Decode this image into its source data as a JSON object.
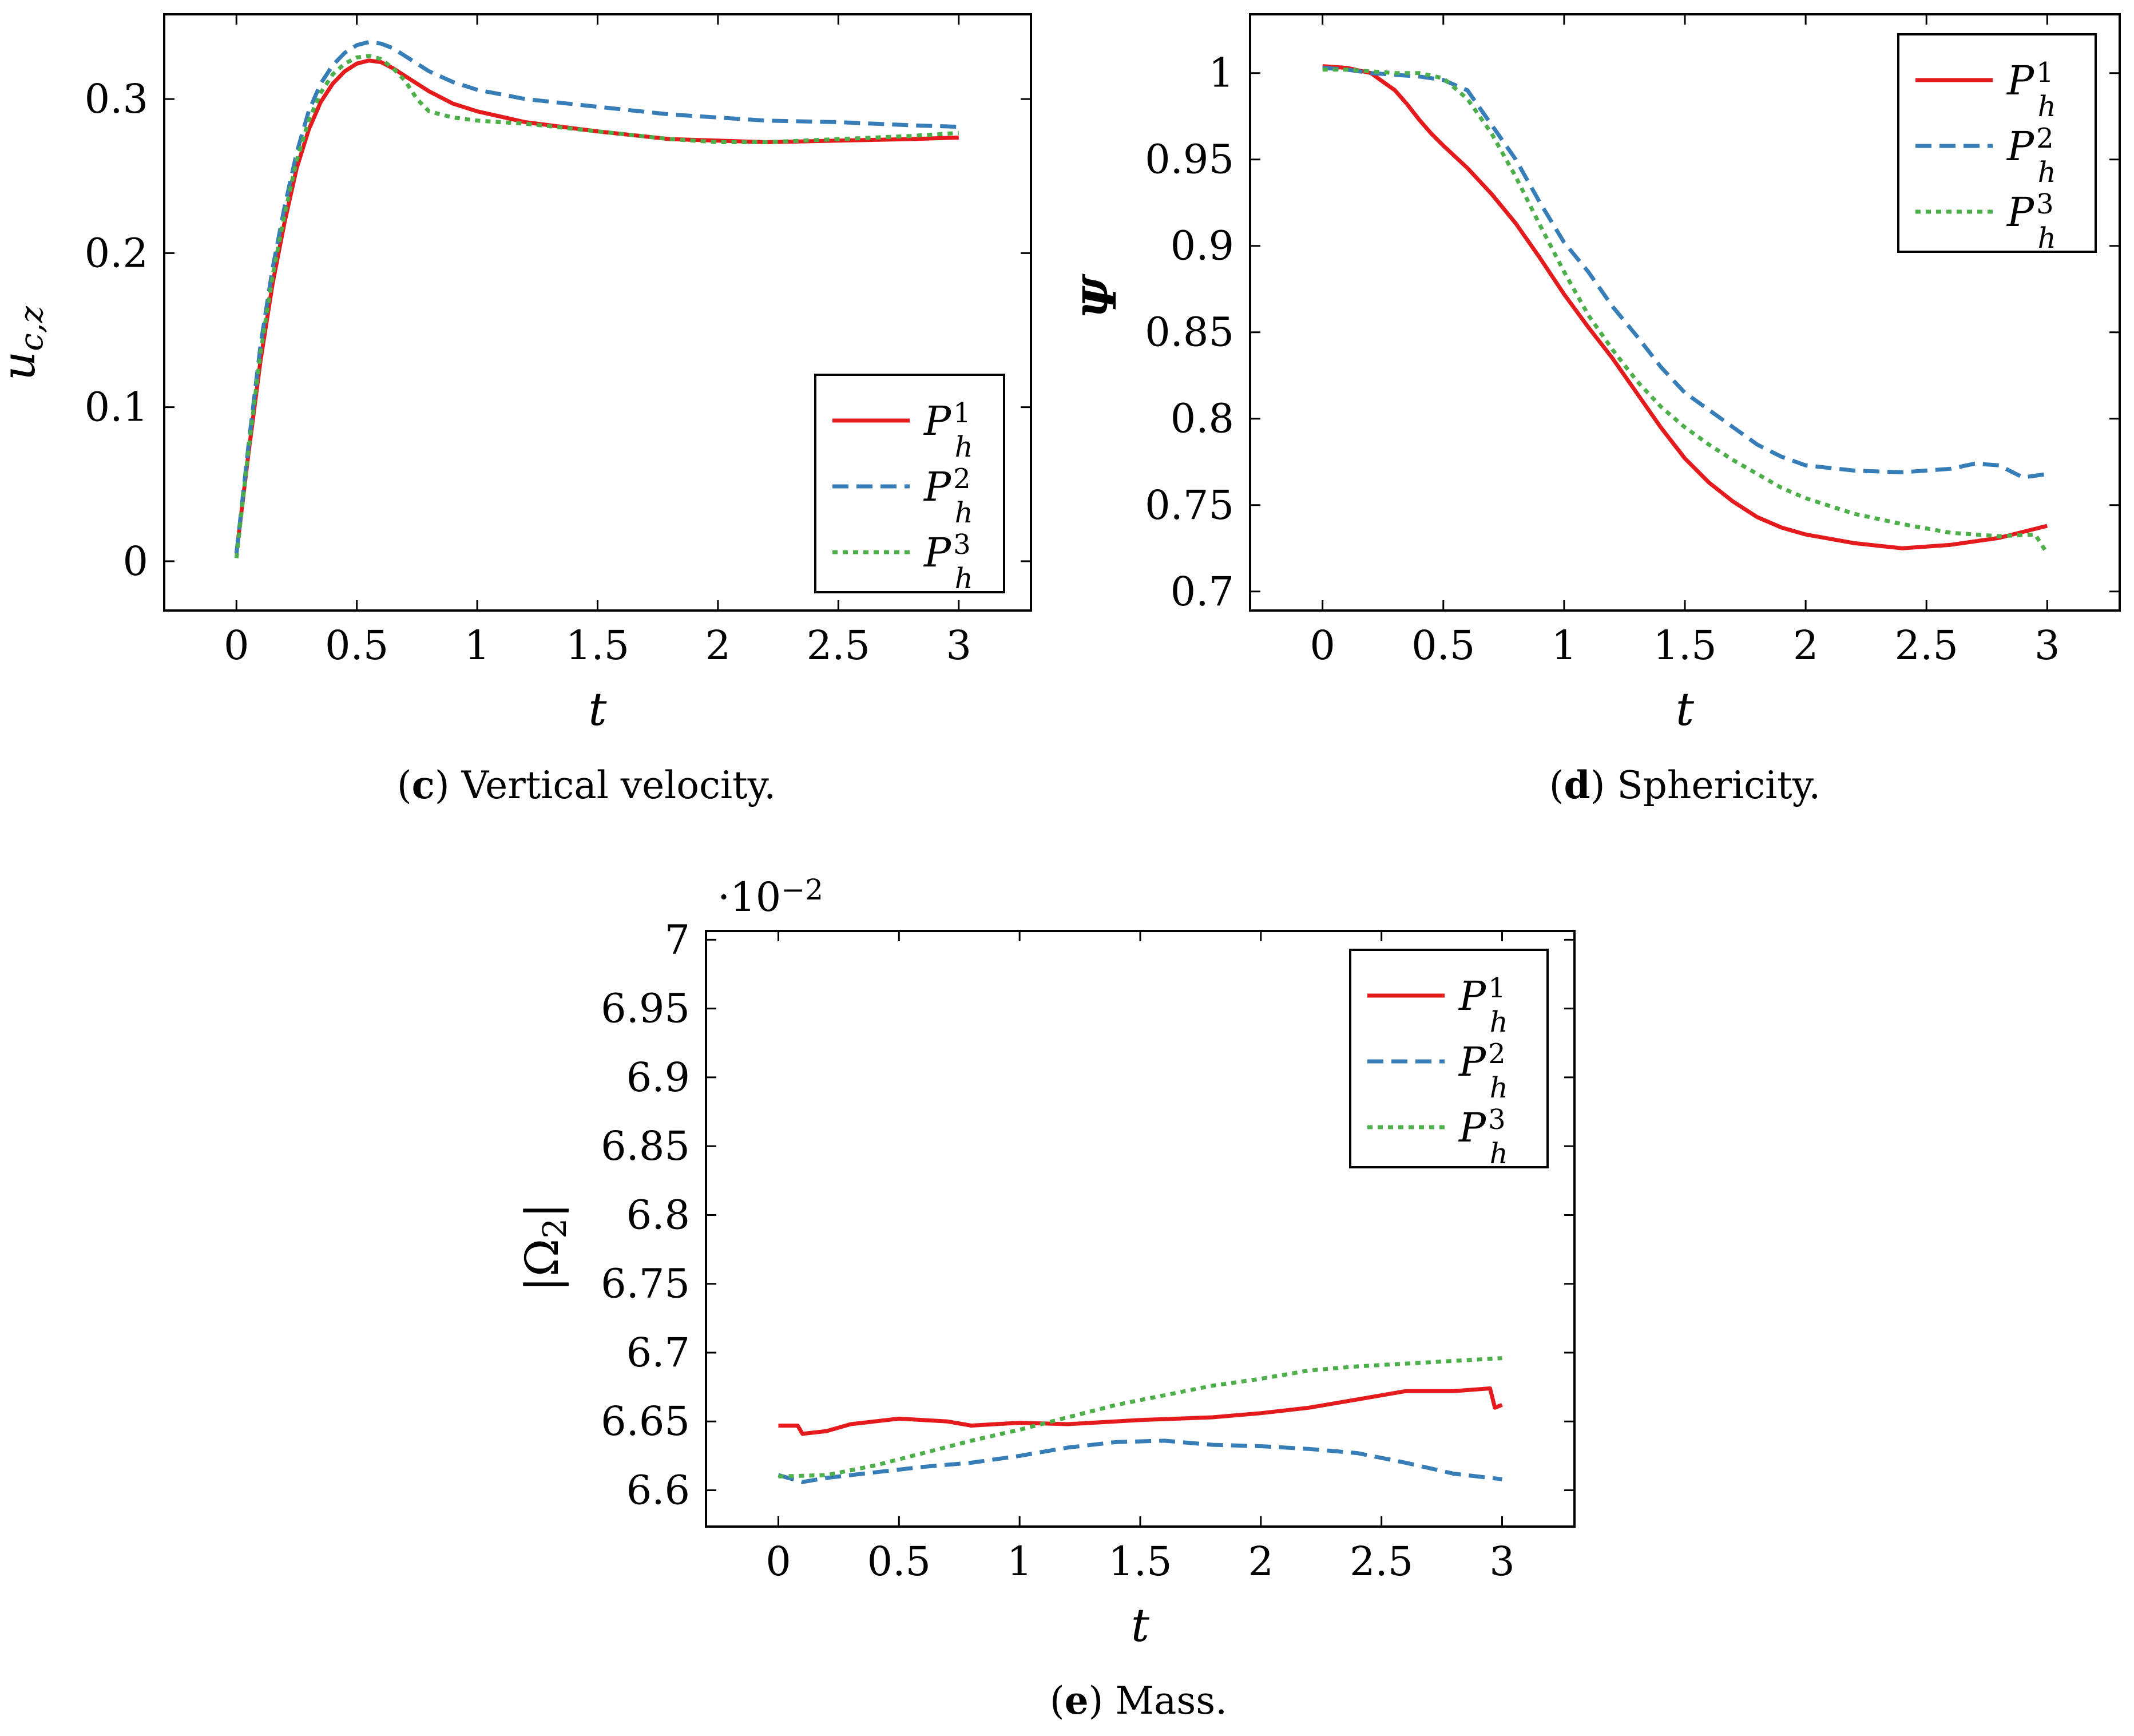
{
  "chart_data": [
    {
      "type": "line",
      "id": "c",
      "caption_letter": "c",
      "caption_text": " Vertical velocity.",
      "xlabel": "t",
      "ylabel": "u_{c,z}",
      "ylabel_main": "u",
      "ylabel_sub": "c,z",
      "xlim": [
        -0.3,
        3.3
      ],
      "ylim": [
        -0.032,
        0.355
      ],
      "xticks": [
        0,
        0.5,
        1,
        1.5,
        2,
        2.5,
        3
      ],
      "xtick_labels": [
        "0",
        "0.5",
        "1",
        "1.5",
        "2",
        "2.5",
        "3"
      ],
      "yticks": [
        0,
        0.1,
        0.2,
        0.3
      ],
      "ytick_labels": [
        "0",
        "0.1",
        "0.2",
        "0.3"
      ],
      "legend_position": "bottom-right",
      "series": [
        {
          "name": "P_h^1",
          "label_main": "P",
          "label_sub": "h",
          "label_sup": "1",
          "color": "#e41a1c",
          "dash": "solid",
          "x": [
            0,
            0.05,
            0.1,
            0.15,
            0.2,
            0.25,
            0.3,
            0.35,
            0.4,
            0.45,
            0.5,
            0.55,
            0.6,
            0.65,
            0.7,
            0.8,
            0.9,
            1.0,
            1.2,
            1.5,
            1.8,
            2.0,
            2.2,
            2.5,
            2.8,
            3.0
          ],
          "y": [
            0.005,
            0.07,
            0.13,
            0.18,
            0.22,
            0.255,
            0.28,
            0.298,
            0.31,
            0.318,
            0.323,
            0.325,
            0.324,
            0.32,
            0.315,
            0.305,
            0.297,
            0.292,
            0.285,
            0.279,
            0.274,
            0.273,
            0.272,
            0.273,
            0.274,
            0.275
          ]
        },
        {
          "name": "P_h^2",
          "label_main": "P",
          "label_sub": "h",
          "label_sup": "2",
          "color": "#377eb8",
          "dash": "dashed",
          "x": [
            0,
            0.05,
            0.1,
            0.15,
            0.2,
            0.25,
            0.3,
            0.35,
            0.4,
            0.45,
            0.5,
            0.55,
            0.6,
            0.65,
            0.7,
            0.8,
            0.9,
            1.0,
            1.2,
            1.5,
            1.8,
            2.0,
            2.2,
            2.5,
            2.8,
            3.0
          ],
          "y": [
            0.005,
            0.075,
            0.14,
            0.19,
            0.23,
            0.265,
            0.292,
            0.31,
            0.322,
            0.33,
            0.335,
            0.337,
            0.336,
            0.333,
            0.328,
            0.318,
            0.311,
            0.306,
            0.3,
            0.295,
            0.29,
            0.288,
            0.286,
            0.285,
            0.283,
            0.282
          ]
        },
        {
          "name": "P_h^3",
          "label_main": "P",
          "label_sub": "h",
          "label_sup": "3",
          "color": "#4daf4a",
          "dash": "dotted",
          "x": [
            0,
            0.05,
            0.1,
            0.15,
            0.2,
            0.25,
            0.3,
            0.35,
            0.4,
            0.45,
            0.5,
            0.55,
            0.6,
            0.65,
            0.7,
            0.75,
            0.8,
            0.9,
            1.0,
            1.2,
            1.5,
            1.8,
            2.0,
            2.2,
            2.5,
            2.8,
            3.0
          ],
          "y": [
            0.002,
            0.072,
            0.135,
            0.185,
            0.225,
            0.26,
            0.286,
            0.304,
            0.316,
            0.323,
            0.327,
            0.328,
            0.326,
            0.32,
            0.312,
            0.3,
            0.292,
            0.288,
            0.286,
            0.284,
            0.279,
            0.274,
            0.272,
            0.272,
            0.274,
            0.276,
            0.278
          ]
        }
      ]
    },
    {
      "type": "line",
      "id": "d",
      "caption_letter": "d",
      "caption_text": " Sphericity.",
      "xlabel": "t",
      "ylabel": "Ψ",
      "ylabel_main": "Ψ",
      "ylabel_sub": "",
      "xlim": [
        -0.3,
        3.3
      ],
      "ylim": [
        0.689,
        1.034
      ],
      "xticks": [
        0,
        0.5,
        1,
        1.5,
        2,
        2.5,
        3
      ],
      "xtick_labels": [
        "0",
        "0.5",
        "1",
        "1.5",
        "2",
        "2.5",
        "3"
      ],
      "yticks": [
        0.7,
        0.75,
        0.8,
        0.85,
        0.9,
        0.95,
        1
      ],
      "ytick_labels": [
        "0.7",
        "0.75",
        "0.8",
        "0.85",
        "0.9",
        "0.95",
        "1"
      ],
      "legend_position": "top-right",
      "series": [
        {
          "name": "P_h^1",
          "label_main": "P",
          "label_sub": "h",
          "label_sup": "1",
          "color": "#e41a1c",
          "dash": "solid",
          "x": [
            0,
            0.1,
            0.2,
            0.3,
            0.35,
            0.4,
            0.45,
            0.5,
            0.6,
            0.7,
            0.8,
            0.9,
            1.0,
            1.1,
            1.2,
            1.3,
            1.4,
            1.5,
            1.6,
            1.7,
            1.8,
            1.9,
            2.0,
            2.2,
            2.4,
            2.6,
            2.8,
            3.0
          ],
          "y": [
            1.004,
            1.003,
            1.0,
            0.99,
            0.982,
            0.973,
            0.965,
            0.958,
            0.945,
            0.93,
            0.913,
            0.893,
            0.872,
            0.853,
            0.835,
            0.815,
            0.795,
            0.777,
            0.763,
            0.752,
            0.743,
            0.737,
            0.733,
            0.728,
            0.725,
            0.727,
            0.731,
            0.738
          ]
        },
        {
          "name": "P_h^2",
          "label_main": "P",
          "label_sub": "h",
          "label_sup": "2",
          "color": "#377eb8",
          "dash": "dashed",
          "x": [
            0,
            0.1,
            0.2,
            0.3,
            0.4,
            0.5,
            0.6,
            0.65,
            0.7,
            0.8,
            0.9,
            1.0,
            1.1,
            1.2,
            1.3,
            1.4,
            1.5,
            1.6,
            1.7,
            1.8,
            1.9,
            2.0,
            2.2,
            2.4,
            2.6,
            2.7,
            2.8,
            2.9,
            3.0
          ],
          "y": [
            1.003,
            1.002,
            1.0,
            0.999,
            0.998,
            0.996,
            0.99,
            0.98,
            0.97,
            0.95,
            0.925,
            0.902,
            0.885,
            0.865,
            0.848,
            0.83,
            0.815,
            0.805,
            0.795,
            0.785,
            0.778,
            0.773,
            0.77,
            0.769,
            0.771,
            0.774,
            0.773,
            0.766,
            0.768
          ]
        },
        {
          "name": "P_h^3",
          "label_main": "P",
          "label_sub": "h",
          "label_sup": "3",
          "color": "#4daf4a",
          "dash": "dotted",
          "x": [
            0,
            0.1,
            0.2,
            0.3,
            0.4,
            0.5,
            0.6,
            0.7,
            0.8,
            0.9,
            1.0,
            1.1,
            1.2,
            1.3,
            1.4,
            1.5,
            1.6,
            1.7,
            1.8,
            1.9,
            2.0,
            2.2,
            2.4,
            2.6,
            2.8,
            2.95,
            3.0
          ],
          "y": [
            1.002,
            1.002,
            1.001,
            1.0,
            1.0,
            0.997,
            0.985,
            0.965,
            0.94,
            0.912,
            0.885,
            0.86,
            0.84,
            0.822,
            0.807,
            0.795,
            0.785,
            0.776,
            0.768,
            0.76,
            0.754,
            0.745,
            0.739,
            0.734,
            0.732,
            0.733,
            0.722
          ]
        }
      ]
    },
    {
      "type": "line",
      "id": "e",
      "caption_letter": "e",
      "caption_text": " Mass.",
      "xlabel": "t",
      "ylabel": "|Ω_2|",
      "ylabel_main": "|Ω",
      "ylabel_sub": "2",
      "ylabel_end": "|",
      "multiplier_label": "·10",
      "multiplier_exp": "−2",
      "xlim": [
        -0.3,
        3.3
      ],
      "ylim": [
        6.5736,
        7.0064
      ],
      "xticks": [
        0,
        0.5,
        1,
        1.5,
        2,
        2.5,
        3
      ],
      "xtick_labels": [
        "0",
        "0.5",
        "1",
        "1.5",
        "2",
        "2.5",
        "3"
      ],
      "yticks": [
        6.6,
        6.65,
        6.7,
        6.75,
        6.8,
        6.85,
        6.9,
        6.95,
        7
      ],
      "ytick_labels": [
        "6.6",
        "6.65",
        "6.7",
        "6.75",
        "6.8",
        "6.85",
        "6.9",
        "6.95",
        "7"
      ],
      "legend_position": "top-right",
      "series": [
        {
          "name": "P_h^1",
          "label_main": "P",
          "label_sub": "h",
          "label_sup": "1",
          "color": "#e41a1c",
          "dash": "solid",
          "x": [
            0,
            0.08,
            0.1,
            0.2,
            0.3,
            0.5,
            0.7,
            0.8,
            0.9,
            1.0,
            1.2,
            1.5,
            1.8,
            2.0,
            2.2,
            2.4,
            2.6,
            2.8,
            2.95,
            2.97,
            3.0
          ],
          "y": [
            6.647,
            6.647,
            6.641,
            6.643,
            6.648,
            6.652,
            6.65,
            6.647,
            6.648,
            6.649,
            6.648,
            6.651,
            6.653,
            6.656,
            6.66,
            6.666,
            6.672,
            6.672,
            6.674,
            6.66,
            6.662
          ]
        },
        {
          "name": "P_h^2",
          "label_main": "P",
          "label_sub": "h",
          "label_sup": "2",
          "color": "#377eb8",
          "dash": "dashed",
          "x": [
            0,
            0.1,
            0.2,
            0.4,
            0.6,
            0.8,
            1.0,
            1.2,
            1.4,
            1.6,
            1.8,
            2.0,
            2.2,
            2.4,
            2.6,
            2.8,
            3.0
          ],
          "y": [
            6.611,
            6.606,
            6.609,
            6.613,
            6.617,
            6.62,
            6.625,
            6.631,
            6.635,
            6.636,
            6.633,
            6.632,
            6.63,
            6.627,
            6.62,
            6.612,
            6.608
          ]
        },
        {
          "name": "P_h^3",
          "label_main": "P",
          "label_sub": "h",
          "label_sup": "3",
          "color": "#4daf4a",
          "dash": "dotted",
          "x": [
            0,
            0.2,
            0.4,
            0.6,
            0.8,
            1.0,
            1.2,
            1.4,
            1.6,
            1.8,
            2.0,
            2.2,
            2.4,
            2.6,
            2.8,
            3.0
          ],
          "y": [
            6.61,
            6.611,
            6.618,
            6.627,
            6.636,
            6.644,
            6.653,
            6.662,
            6.669,
            6.676,
            6.681,
            6.687,
            6.69,
            6.692,
            6.694,
            6.696
          ]
        }
      ]
    }
  ]
}
